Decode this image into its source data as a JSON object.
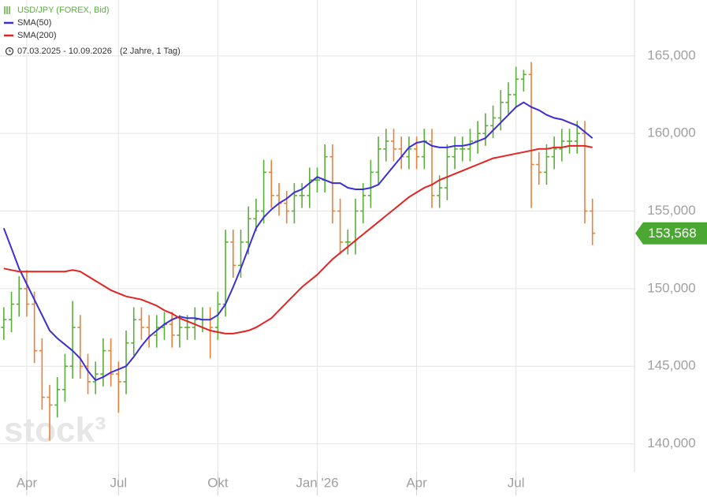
{
  "chart_data": {
    "type": "ohlc",
    "categories": [
      null,
      null,
      null,
      "Apr",
      null,
      null,
      null,
      null,
      null,
      null,
      null,
      null,
      null,
      null,
      null,
      "Jul",
      null,
      null,
      null,
      null,
      null,
      null,
      null,
      null,
      null,
      null,
      null,
      null,
      "Okt",
      null,
      null,
      null,
      null,
      null,
      null,
      null,
      null,
      null,
      null,
      null,
      null,
      "Jan '26",
      null,
      null,
      null,
      null,
      null,
      null,
      null,
      null,
      null,
      null,
      null,
      null,
      "Apr",
      null,
      null,
      null,
      null,
      null,
      null,
      null,
      null,
      null,
      null,
      null,
      null,
      "Jul",
      null,
      null,
      null,
      null,
      null,
      null,
      null,
      null,
      null,
      null,
      null,
      null,
      null,
      null,
      null
    ],
    "series": [
      {
        "name": "USD/JPY (FOREX, Bid)",
        "up_color": "#5aae3a",
        "down_color": "#e8823a",
        "open": [
          147.5,
          148,
          149,
          150,
          149,
          146,
          143,
          142.5,
          143.5,
          145,
          147.5,
          145,
          144,
          144.5,
          146,
          144.5,
          144,
          146.5,
          148,
          147.5,
          147,
          147.5,
          147.7,
          147,
          147.5,
          147.5,
          148,
          148,
          147.5,
          149,
          153,
          151.5,
          153,
          154.5,
          155,
          157.5,
          156,
          155.5,
          155,
          156,
          156,
          157,
          157,
          158.5,
          155,
          153,
          153,
          155,
          156,
          157.5,
          159,
          159.5,
          159,
          158.5,
          159,
          158.5,
          159.5,
          156,
          156.5,
          158.5,
          159,
          159,
          159.5,
          160,
          160.5,
          161,
          162,
          162.5,
          163.5,
          163.8,
          158,
          157.5,
          158.5,
          159,
          159.5,
          159.5,
          160,
          155,
          null,
          null,
          null,
          null,
          null
        ],
        "high": [
          148.8,
          149.8,
          150.8,
          151.2,
          149.8,
          146.8,
          143.8,
          144.3,
          145.8,
          149.2,
          148.3,
          145.8,
          145.3,
          146.8,
          146.8,
          145.3,
          147.3,
          148.8,
          148.8,
          148.3,
          148.3,
          148.5,
          148.5,
          148.3,
          148.3,
          148.8,
          148.8,
          148.8,
          149.8,
          153.8,
          153.8,
          153.8,
          155.3,
          155.8,
          158.3,
          158.3,
          156.8,
          156.3,
          156.8,
          156.8,
          157.8,
          157.8,
          159.3,
          159.3,
          155.8,
          153.8,
          155.8,
          156.8,
          158.3,
          159.8,
          160.3,
          160.3,
          159.8,
          159.8,
          159.8,
          160.3,
          160.3,
          157.3,
          159.3,
          159.8,
          159.8,
          160.3,
          160.8,
          161.3,
          161.8,
          162.8,
          163.3,
          164.3,
          164.1,
          164.6,
          158.8,
          159.3,
          159.8,
          160.3,
          160.3,
          160.8,
          160.8,
          155.8,
          null,
          null,
          null,
          null,
          null
        ],
        "low": [
          146.7,
          147.2,
          148.2,
          148.2,
          145.2,
          142.2,
          140.2,
          141.7,
          142.7,
          144.2,
          144.2,
          143.2,
          143.2,
          143.7,
          143.7,
          142,
          143.2,
          145.7,
          146.7,
          146.2,
          146.2,
          146.7,
          146.2,
          146.2,
          146.7,
          146.7,
          147.2,
          145.5,
          146.7,
          148.2,
          150.7,
          150.7,
          152.2,
          153.7,
          154.2,
          155.2,
          154.7,
          154.2,
          154.2,
          155.2,
          155.2,
          156.2,
          156.2,
          154.2,
          152.2,
          152.2,
          152.2,
          154.2,
          155.2,
          156.7,
          158.2,
          158.2,
          157.7,
          157.7,
          157.7,
          157.7,
          155.2,
          155.2,
          155.7,
          157.7,
          158.2,
          158.2,
          158.7,
          159.2,
          159.7,
          160.2,
          161.2,
          161.7,
          162.7,
          155.2,
          156.7,
          156.7,
          157.7,
          158.2,
          158.7,
          158.7,
          154.2,
          152.8,
          null,
          null,
          null,
          null,
          null
        ],
        "close": [
          148,
          149,
          150,
          149,
          146,
          143,
          142.5,
          143.5,
          145,
          147.5,
          145,
          144,
          144.5,
          146,
          144.5,
          144,
          146.5,
          148,
          147.5,
          147,
          147.5,
          147.7,
          147,
          147.5,
          147.5,
          148,
          148,
          147.5,
          149,
          153,
          151.5,
          153,
          154.5,
          155,
          157.5,
          156,
          155.5,
          155,
          156,
          156,
          157,
          157,
          158.5,
          155,
          153,
          153,
          155,
          156,
          157.5,
          159,
          159.5,
          159,
          158.5,
          159,
          158.5,
          159.5,
          156,
          156.5,
          158.5,
          159,
          159,
          159.5,
          160,
          160.5,
          161,
          162,
          162.5,
          163.5,
          163.8,
          158,
          157.5,
          158.5,
          159,
          159.5,
          159.5,
          160,
          155,
          153.568,
          null,
          null,
          null,
          null,
          null
        ]
      },
      {
        "name": "SMA(50)",
        "color": "#3a2fd6",
        "values": [
          153.9,
          152.6,
          151.3,
          150.3,
          149.3,
          148.3,
          147.3,
          146.8,
          146.4,
          146.0,
          145.5,
          144.7,
          144.1,
          144.3,
          144.6,
          144.8,
          145.0,
          145.6,
          146.3,
          146.9,
          147.3,
          147.7,
          148.0,
          148.2,
          148.1,
          148.1,
          148.0,
          148.0,
          148.3,
          149.0,
          150.1,
          151.3,
          152.6,
          153.9,
          154.6,
          155.1,
          155.5,
          155.8,
          156.2,
          156.4,
          156.8,
          157.2,
          157.0,
          156.8,
          156.8,
          156.5,
          156.4,
          156.4,
          156.5,
          156.7,
          157.3,
          157.9,
          158.5,
          159.1,
          159.4,
          159.5,
          159.2,
          159.1,
          159.1,
          159.2,
          159.2,
          159.3,
          159.5,
          159.7,
          160.2,
          160.7,
          161.2,
          161.7,
          162.0,
          161.7,
          161.5,
          161.2,
          161.0,
          160.9,
          160.7,
          160.5,
          160.1,
          159.7,
          null,
          null,
          null,
          null,
          null
        ]
      },
      {
        "name": "SMA(200)",
        "color": "#e52222",
        "values": [
          151.3,
          151.2,
          151.1,
          151.1,
          151.1,
          151.1,
          151.1,
          151.1,
          151.1,
          151.2,
          151.1,
          150.8,
          150.5,
          150.2,
          149.9,
          149.7,
          149.5,
          149.4,
          149.3,
          149.1,
          148.9,
          148.6,
          148.4,
          148.1,
          147.9,
          147.7,
          147.5,
          147.3,
          147.2,
          147.1,
          147.1,
          147.2,
          147.3,
          147.5,
          147.8,
          148.1,
          148.6,
          149.1,
          149.6,
          150.1,
          150.5,
          150.9,
          151.4,
          151.9,
          152.3,
          152.7,
          153.1,
          153.5,
          153.9,
          154.3,
          154.7,
          155.1,
          155.5,
          155.9,
          156.2,
          156.5,
          156.7,
          157.0,
          157.2,
          157.4,
          157.6,
          157.8,
          158.0,
          158.2,
          158.4,
          158.5,
          158.6,
          158.7,
          158.8,
          158.9,
          159.0,
          159.0,
          159.1,
          159.1,
          159.2,
          159.2,
          159.2,
          159.1,
          null,
          null,
          null,
          null,
          null
        ]
      }
    ],
    "ylim": [
      138.2,
      168.6
    ],
    "yticks": [
      {
        "value": 140,
        "label": "140,000"
      },
      {
        "value": 145,
        "label": "145,000"
      },
      {
        "value": 150,
        "label": "150,000"
      },
      {
        "value": 155,
        "label": "155,000"
      },
      {
        "value": 160,
        "label": "160,000"
      },
      {
        "value": 165,
        "label": "165,000"
      }
    ],
    "last_price": {
      "value": 153.568,
      "label": "153,568"
    },
    "period": "07.03.2025 - 10.09.2026",
    "period_note": "(2 Jahre, 1 Tag)",
    "watermark": "stock³",
    "grid": true
  }
}
